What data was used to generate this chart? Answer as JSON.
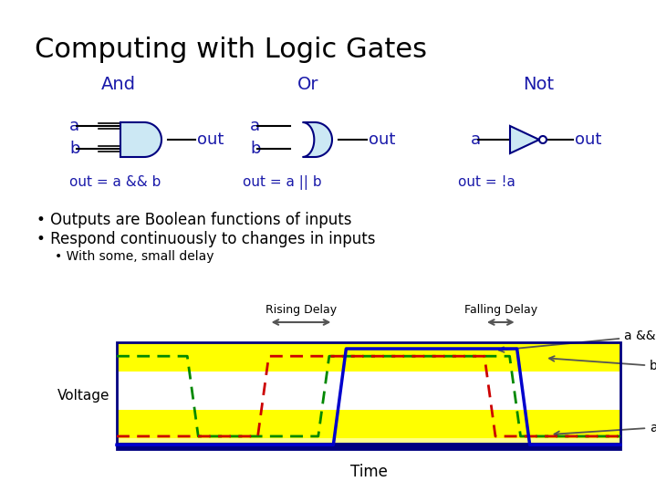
{
  "title": "Computing with Logic Gates",
  "title_color": "#000000",
  "title_fontsize": 22,
  "gate_label_color": "#1a1aaa",
  "gate_label_fontsize": 14,
  "bullet_color": "#000000",
  "bullet_fontsize": 12,
  "bullet1": "Outputs are Boolean functions of inputs",
  "bullet2": "Respond continuously to changes in inputs",
  "bullet3": "With some, small delay",
  "and_label": "And",
  "or_label": "Or",
  "not_label": "Not",
  "and_eq": "out = a && b",
  "or_eq": "out = a || b",
  "not_eq": "out = !a",
  "gate_fill": "#cce8f4",
  "gate_stroke": "#000080",
  "bg_color": "#ffffff",
  "plot_border_color": "#000080",
  "waveform_a_color": "#cc0000",
  "waveform_b_color": "#008800",
  "waveform_out_color": "#0000cc",
  "voltage_label": "Voltage",
  "time_label": "Time",
  "rising_delay_label": "Rising Delay",
  "falling_delay_label": "Falling Delay",
  "label_a": "a",
  "label_b": "b",
  "label_aab": "a && b",
  "arrow_color": "#555555"
}
